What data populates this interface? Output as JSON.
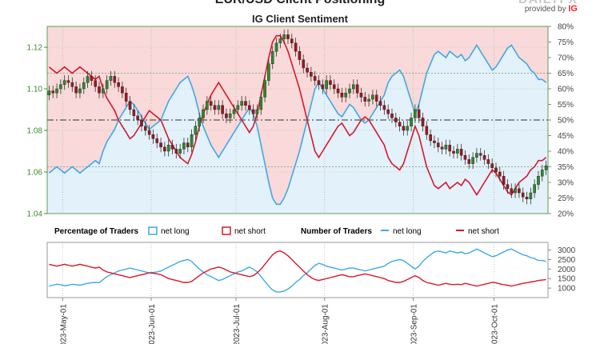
{
  "header": {
    "title": "EUR/USD Client Positioning",
    "subtitle": "IG Client Sentiment",
    "brand": "DAILYFX",
    "provided_by": "provided by",
    "provided_brand": "IG"
  },
  "legend": {
    "percentage_title": "Percentage of Traders",
    "pct_net_long": "net long",
    "pct_net_short": "net short",
    "number_title": "Number of Traders",
    "num_net_long": "net long",
    "num_net_short": "net short"
  },
  "colors": {
    "long": "#3fa9e6",
    "short": "#d7192b",
    "long_fill": "#e3f1fb",
    "short_fill": "#f9d9d9",
    "candle_up": "#2b8a2b",
    "candle_down": "#a1151e",
    "left_axis": "#3a8a2e"
  },
  "chart_data": [
    {
      "type": "candlestick",
      "title": "IG Client Sentiment",
      "ylim": [
        1.04,
        1.13
      ],
      "left_ticks": [
        "1.04",
        "1.06",
        "1.08",
        "1.10",
        "1.12"
      ],
      "right_ylim": [
        20,
        80
      ],
      "right_ticks": [
        "20%",
        "25%",
        "30%",
        "35%",
        "40%",
        "45%",
        "50%",
        "55%",
        "60%",
        "65%",
        "70%",
        "75%",
        "80%"
      ],
      "x_labels": [
        "2023-May-01",
        "2023-Jun-01",
        "2023-Jul-01",
        "2023-Aug-01",
        "2023-Sep-01",
        "2023-Oct-01"
      ],
      "x_label_positions": [
        4,
        27,
        49,
        72,
        95,
        116
      ],
      "day_count": 130,
      "close": [
        1.099,
        1.098,
        1.1,
        1.102,
        1.104,
        1.103,
        1.101,
        1.098,
        1.1,
        1.103,
        1.106,
        1.104,
        1.101,
        1.098,
        1.1,
        1.104,
        1.106,
        1.103,
        1.101,
        1.098,
        1.094,
        1.09,
        1.087,
        1.085,
        1.082,
        1.08,
        1.078,
        1.076,
        1.074,
        1.072,
        1.07,
        1.073,
        1.071,
        1.069,
        1.071,
        1.074,
        1.072,
        1.078,
        1.082,
        1.086,
        1.09,
        1.094,
        1.092,
        1.09,
        1.092,
        1.088,
        1.086,
        1.088,
        1.09,
        1.092,
        1.094,
        1.092,
        1.09,
        1.088,
        1.09,
        1.096,
        1.104,
        1.112,
        1.118,
        1.122,
        1.124,
        1.126,
        1.124,
        1.122,
        1.118,
        1.114,
        1.11,
        1.108,
        1.106,
        1.104,
        1.102,
        1.1,
        1.104,
        1.102,
        1.1,
        1.098,
        1.096,
        1.098,
        1.1,
        1.102,
        1.098,
        1.096,
        1.094,
        1.095,
        1.097,
        1.094,
        1.092,
        1.09,
        1.088,
        1.086,
        1.084,
        1.082,
        1.08,
        1.082,
        1.086,
        1.09,
        1.086,
        1.082,
        1.078,
        1.075,
        1.074,
        1.072,
        1.071,
        1.073,
        1.07,
        1.069,
        1.071,
        1.068,
        1.066,
        1.064,
        1.067,
        1.069,
        1.068,
        1.066,
        1.064,
        1.062,
        1.06,
        1.058,
        1.054,
        1.052,
        1.05,
        1.052,
        1.05,
        1.048,
        1.047,
        1.05,
        1.054,
        1.058,
        1.061,
        1.063
      ],
      "net_long_pct": [
        33,
        34,
        35,
        34,
        33,
        34,
        35,
        34,
        33,
        34,
        35,
        36,
        37,
        36,
        40,
        43,
        45,
        47,
        50,
        52,
        54,
        56,
        55,
        53,
        51,
        49,
        47,
        48,
        49,
        50,
        53,
        56,
        58,
        60,
        62,
        63,
        64,
        61,
        57,
        52,
        48,
        45,
        42,
        40,
        38,
        40,
        42,
        44,
        46,
        48,
        50,
        52,
        54,
        52,
        48,
        42,
        36,
        30,
        25,
        23,
        23,
        25,
        28,
        32,
        36,
        40,
        45,
        50,
        55,
        60,
        62,
        60,
        58,
        56,
        54,
        52,
        51,
        53,
        55,
        54,
        52,
        50,
        49,
        50,
        52,
        54,
        56,
        58,
        62,
        64,
        65,
        66,
        64,
        60,
        56,
        52,
        55,
        60,
        65,
        68,
        71,
        72,
        71,
        70,
        72,
        71,
        70,
        71,
        69,
        70,
        72,
        74,
        72,
        70,
        68,
        66,
        67,
        69,
        71,
        73,
        74,
        72,
        70,
        69,
        68,
        66,
        65,
        63,
        63,
        62
      ],
      "net_short_pct": [
        67,
        66,
        65,
        66,
        67,
        66,
        65,
        66,
        67,
        66,
        65,
        64,
        63,
        64,
        60,
        57,
        55,
        53,
        50,
        48,
        46,
        44,
        45,
        47,
        49,
        51,
        53,
        52,
        51,
        50,
        47,
        44,
        42,
        40,
        38,
        37,
        36,
        39,
        43,
        48,
        52,
        55,
        58,
        60,
        62,
        60,
        58,
        56,
        54,
        52,
        50,
        48,
        46,
        48,
        52,
        58,
        64,
        70,
        75,
        77,
        77,
        75,
        72,
        68,
        64,
        60,
        55,
        50,
        45,
        40,
        38,
        40,
        42,
        44,
        46,
        48,
        49,
        47,
        45,
        46,
        48,
        50,
        51,
        50,
        48,
        46,
        44,
        42,
        38,
        36,
        35,
        34,
        36,
        40,
        44,
        48,
        45,
        40,
        35,
        32,
        29,
        28,
        29,
        30,
        28,
        29,
        30,
        29,
        31,
        30,
        28,
        26,
        28,
        30,
        32,
        34,
        33,
        31,
        29,
        27,
        26,
        28,
        30,
        31,
        32,
        34,
        35,
        37,
        37,
        38
      ]
    },
    {
      "type": "line",
      "title": "Number of Traders",
      "ylim": [
        500,
        3400
      ],
      "ticks": [
        "1000",
        "1500",
        "2000",
        "2500",
        "3000"
      ],
      "series": [
        {
          "name": "net long",
          "values": [
            1100,
            1150,
            1200,
            1180,
            1120,
            1150,
            1200,
            1180,
            1150,
            1200,
            1250,
            1280,
            1300,
            1280,
            1450,
            1600,
            1700,
            1800,
            1900,
            1950,
            2000,
            2050,
            2000,
            1950,
            1900,
            1850,
            1800,
            1820,
            1850,
            1900,
            2000,
            2100,
            2200,
            2300,
            2400,
            2450,
            2500,
            2400,
            2200,
            2000,
            1850,
            1700,
            1600,
            1500,
            1400,
            1450,
            1550,
            1650,
            1750,
            1850,
            1900,
            2000,
            2100,
            2000,
            1850,
            1600,
            1350,
            1100,
            900,
            800,
            800,
            850,
            950,
            1100,
            1300,
            1450,
            1650,
            1800,
            2000,
            2200,
            2300,
            2250,
            2150,
            2100,
            2050,
            2000,
            1950,
            2000,
            2050,
            2050,
            2000,
            1950,
            1900,
            1950,
            2000,
            2050,
            2100,
            2150,
            2300,
            2400,
            2450,
            2500,
            2450,
            2300,
            2150,
            2000,
            2150,
            2400,
            2600,
            2750,
            2900,
            2950,
            2900,
            2850,
            2950,
            2900,
            2850,
            2900,
            2800,
            2850,
            2950,
            3050,
            2950,
            2850,
            2750,
            2650,
            2700,
            2800,
            2900,
            3000,
            3050,
            2950,
            2850,
            2750,
            2700,
            2600,
            2550,
            2450,
            2450,
            2400
          ]
        },
        {
          "name": "net short",
          "values": [
            2250,
            2200,
            2150,
            2200,
            2250,
            2200,
            2150,
            2200,
            2250,
            2200,
            2150,
            2100,
            2050,
            2100,
            1950,
            1850,
            1800,
            1750,
            1700,
            1650,
            1600,
            1550,
            1600,
            1650,
            1700,
            1750,
            1800,
            1780,
            1750,
            1700,
            1600,
            1500,
            1450,
            1400,
            1350,
            1300,
            1300,
            1350,
            1500,
            1650,
            1800,
            1900,
            2000,
            2050,
            2100,
            2050,
            1950,
            1850,
            1800,
            1750,
            1700,
            1650,
            1600,
            1650,
            1800,
            2000,
            2250,
            2500,
            2750,
            2900,
            2950,
            2850,
            2700,
            2500,
            2300,
            2100,
            1900,
            1700,
            1550,
            1450,
            1400,
            1450,
            1500,
            1550,
            1600,
            1650,
            1700,
            1650,
            1600,
            1600,
            1650,
            1700,
            1750,
            1700,
            1650,
            1600,
            1550,
            1500,
            1400,
            1350,
            1300,
            1300,
            1350,
            1450,
            1550,
            1650,
            1550,
            1400,
            1300,
            1250,
            1200,
            1150,
            1200,
            1250,
            1200,
            1180,
            1200,
            1180,
            1250,
            1200,
            1150,
            1100,
            1150,
            1200,
            1250,
            1300,
            1280,
            1220,
            1180,
            1150,
            1100,
            1150,
            1200,
            1250,
            1280,
            1320,
            1350,
            1400,
            1420,
            1450
          ]
        }
      ]
    }
  ]
}
